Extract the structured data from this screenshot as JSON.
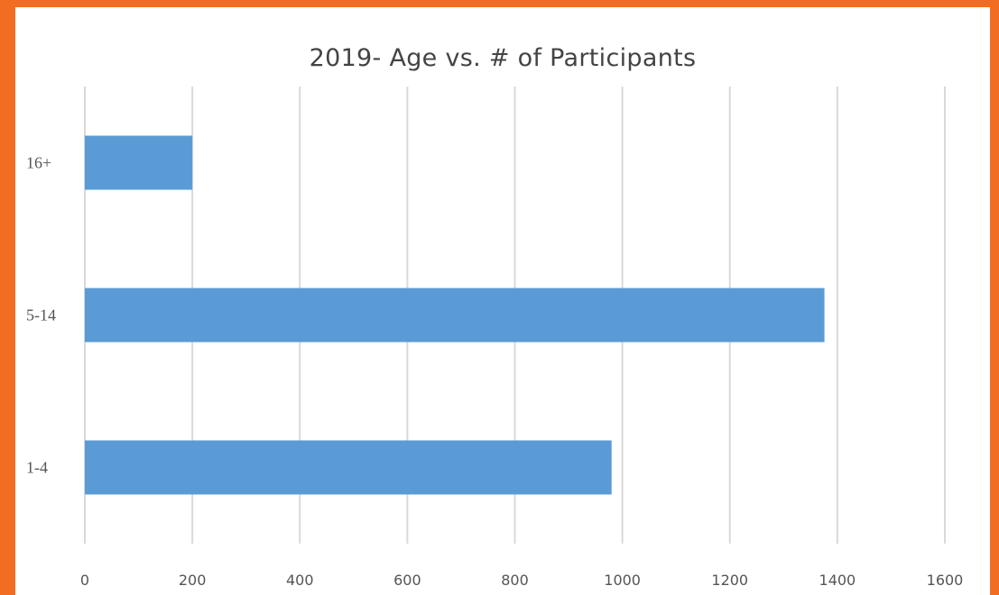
{
  "chart_data": {
    "type": "bar",
    "orientation": "horizontal",
    "title": "2019- Age vs. # of Participants",
    "categories": [
      "1-4",
      "5-14",
      "16+"
    ],
    "values": [
      980,
      1376,
      200
    ],
    "xlim": [
      0,
      1600
    ],
    "xticks": [
      "0",
      "200",
      "400",
      "600",
      "800",
      "1000",
      "1200",
      "1400",
      "1600"
    ],
    "grid": true,
    "bar_color": "#5b9bd5",
    "grid_color": "#d9d9d9"
  },
  "frame_color": "#f26d21"
}
